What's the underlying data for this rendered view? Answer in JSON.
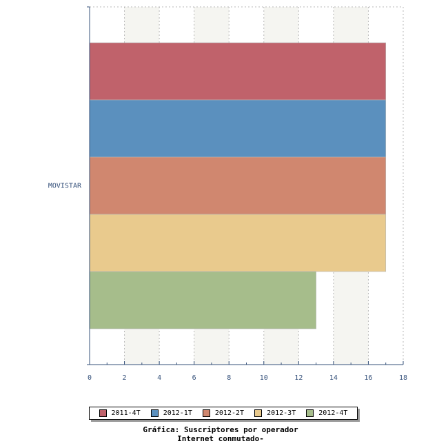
{
  "chart_data": {
    "type": "bar",
    "orientation": "horizontal",
    "categories": [
      "MOVISTAR"
    ],
    "series": [
      {
        "name": "2011-4T",
        "values": [
          17
        ],
        "color": "#c0626b"
      },
      {
        "name": "2012-1T",
        "values": [
          17
        ],
        "color": "#5b90be"
      },
      {
        "name": "2012-2T",
        "values": [
          17
        ],
        "color": "#d0876f"
      },
      {
        "name": "2012-3T",
        "values": [
          17
        ],
        "color": "#e9ca8d"
      },
      {
        "name": "2012-4T",
        "values": [
          13
        ],
        "color": "#a6bd8b"
      }
    ],
    "xlim": [
      0,
      18
    ],
    "x_ticks": [
      "0",
      "2",
      "4",
      "6",
      "8",
      "10",
      "12",
      "14",
      "16",
      "18"
    ],
    "grid": "vertical dashed with alternating column bands",
    "legend_position": "bottom"
  },
  "caption": {
    "line1": "Gráfica: Suscriptores por operador",
    "line2": "Internet conmutado-"
  },
  "colors": {
    "axis": "#34507a",
    "grid": "#b8b8b8",
    "band": "#f5f5f1"
  }
}
